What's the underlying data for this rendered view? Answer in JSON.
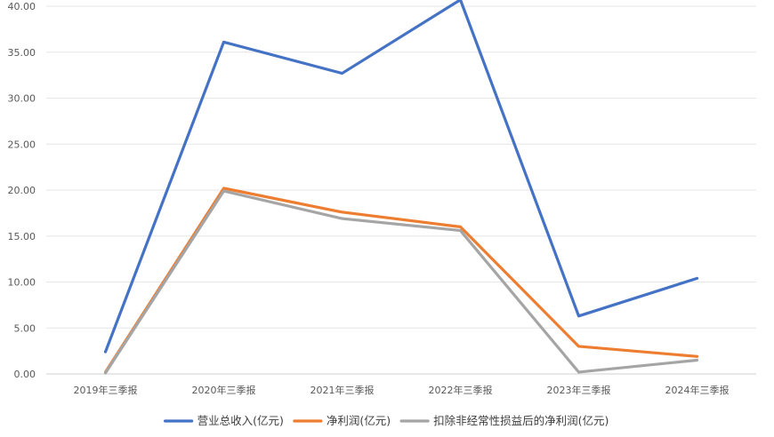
{
  "chart_data": {
    "type": "line",
    "title": "",
    "xlabel": "",
    "ylabel": "",
    "categories": [
      "2019年三季报",
      "2020年三季报",
      "2021年三季报",
      "2022年三季报",
      "2023年三季报",
      "2024年三季报"
    ],
    "ylim": [
      0,
      40
    ],
    "yticks": [
      "0.00",
      "5.00",
      "10.00",
      "15.00",
      "20.00",
      "25.00",
      "30.00",
      "35.00",
      "40.00"
    ],
    "grid": true,
    "legend_position": "bottom",
    "series": [
      {
        "name": "营业总收入(亿元)",
        "color": "#4472C4",
        "values": [
          2.4,
          36.1,
          32.7,
          40.7,
          6.3,
          10.4
        ]
      },
      {
        "name": "净利润(亿元)",
        "color": "#ED7D31",
        "values": [
          0.2,
          20.2,
          17.6,
          16.0,
          3.0,
          1.9
        ]
      },
      {
        "name": "扣除非经常性损益后的净利润(亿元)",
        "color": "#A5A5A5",
        "values": [
          0.1,
          19.9,
          16.9,
          15.6,
          0.2,
          1.5
        ]
      }
    ]
  }
}
